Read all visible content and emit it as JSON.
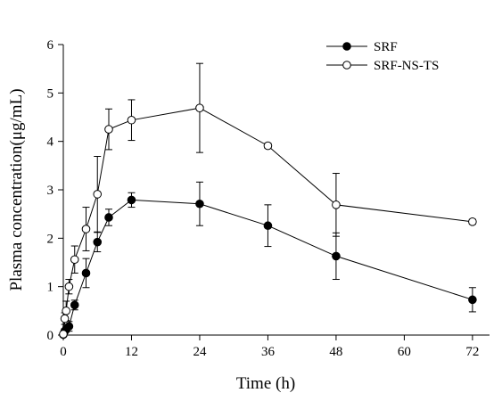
{
  "chart_data": {
    "type": "line",
    "xlabel": "Time (h)",
    "ylabel": "Plasma concentration(μg/mL)",
    "xlim": [
      0,
      75
    ],
    "ylim": [
      0,
      6
    ],
    "xticks": [
      0,
      12,
      24,
      36,
      48,
      60,
      72
    ],
    "yticks": [
      0,
      1,
      2,
      3,
      4,
      5,
      6
    ],
    "grid": false,
    "legend_position": "top-right",
    "series": [
      {
        "name": "SRF",
        "marker": "filled-circle",
        "color": "#000000",
        "x": [
          0,
          0.25,
          0.5,
          1,
          2,
          4,
          6,
          8,
          12,
          24,
          36,
          48,
          72
        ],
        "y": [
          0.01,
          0.08,
          0.12,
          0.18,
          0.62,
          1.28,
          1.92,
          2.43,
          2.79,
          2.71,
          2.26,
          1.63,
          0.73
        ],
        "err": [
          0.0,
          0.05,
          0.06,
          0.1,
          0.1,
          0.3,
          0.2,
          0.17,
          0.15,
          0.45,
          0.43,
          0.48,
          0.25
        ]
      },
      {
        "name": "SRF-NS-TS",
        "marker": "open-circle",
        "color": "#000000",
        "x": [
          0,
          0.25,
          0.5,
          1,
          2,
          4,
          6,
          8,
          12,
          24,
          36,
          48,
          72
        ],
        "y": [
          0.02,
          0.34,
          0.5,
          1.0,
          1.56,
          2.19,
          2.91,
          4.25,
          4.44,
          4.69,
          3.91,
          2.69,
          2.34
        ],
        "err": [
          0.0,
          0.12,
          0.2,
          0.15,
          0.28,
          0.45,
          0.78,
          0.42,
          0.42,
          0.92,
          0.05,
          0.65,
          0.05
        ]
      }
    ]
  }
}
